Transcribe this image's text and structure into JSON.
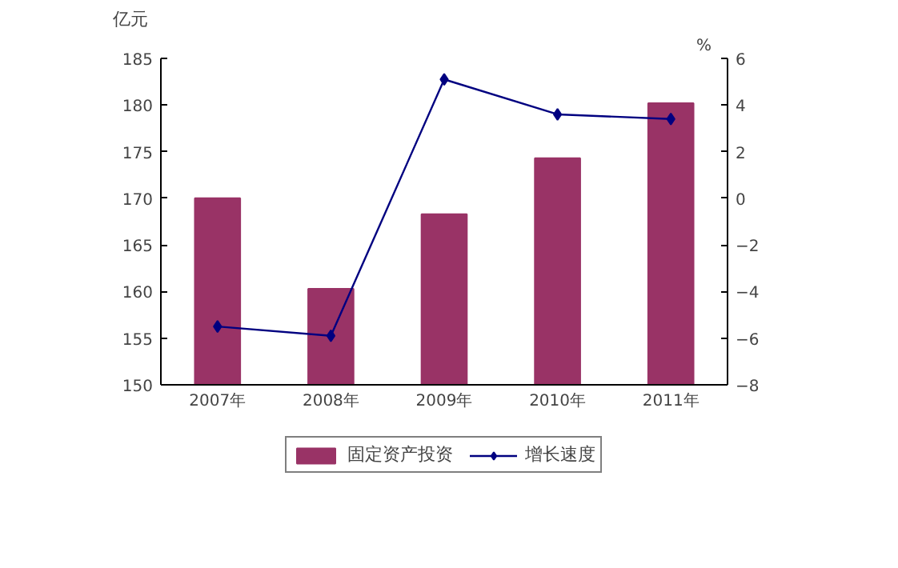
{
  "chart_data": {
    "type": "bar",
    "ylabel": "亿元",
    "y2label": "%",
    "categories": [
      "2007年",
      "2008年",
      "2009年",
      "2010年",
      "2011年"
    ],
    "series": [
      {
        "name": "固定资产投资",
        "color": "#993366",
        "values": [
          170.0,
          160.3,
          168.3,
          174.3,
          180.2
        ]
      },
      {
        "name": "增长速度",
        "type": "line",
        "axis": "y2",
        "color": "#000080",
        "values": [
          -5.5,
          -5.9,
          5.1,
          3.6,
          3.4
        ]
      }
    ],
    "ylim": [
      150,
      185
    ],
    "yticks": [
      150,
      155,
      160,
      165,
      170,
      175,
      180,
      185
    ],
    "y2lim": [
      -8,
      6
    ],
    "y2ticks": [
      -8,
      -6,
      -4,
      -2,
      0,
      2,
      4,
      6
    ],
    "grid": false,
    "legend": "bottom",
    "marker": "diamond"
  }
}
